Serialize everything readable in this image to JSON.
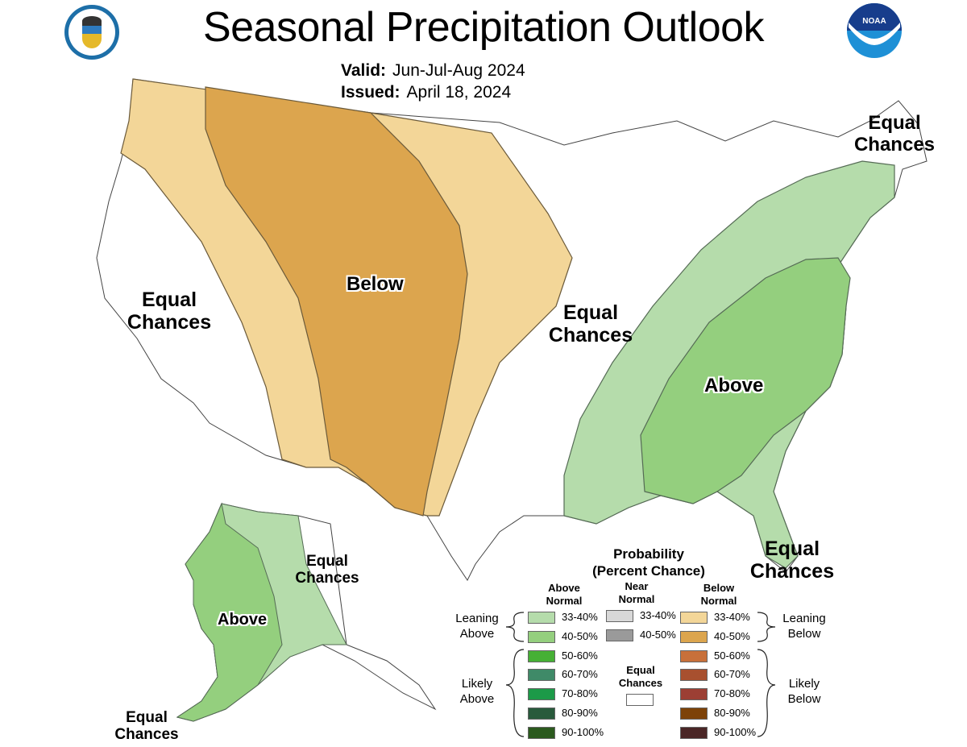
{
  "header": {
    "title": "Seasonal Precipitation Outlook",
    "valid_label": "Valid:",
    "valid_value": "Jun-Jul-Aug 2024",
    "issued_label": "Issued:",
    "issued_value": "April 18, 2024",
    "left_logo": "department-of-commerce-seal",
    "right_logo": "noaa-logo",
    "noaa_text": "NOAA"
  },
  "colors": {
    "below_33_40": "#f3d698",
    "below_40_50": "#dca54e",
    "above_33_40": "#b5dcab",
    "above_40_50": "#94cf7e",
    "equal_chances": "#ffffff",
    "boundary": "#555555"
  },
  "map_labels": {
    "below_center": "Below",
    "above_southeast": "Above",
    "above_alaska": "Above",
    "ec_west": [
      "Equal",
      "Chances"
    ],
    "ec_midwest": [
      "Equal",
      "Chances"
    ],
    "ec_northeast": [
      "Equal",
      "Chances"
    ],
    "ec_florida": [
      "Equal",
      "Chances"
    ],
    "ec_alaska_east": [
      "Equal",
      "Chances"
    ],
    "ec_aleutians": [
      "Equal",
      "Chances"
    ]
  },
  "legend": {
    "title_line1": "Probability",
    "title_line2": "(Percent Chance)",
    "above_header": [
      "Above",
      "Normal"
    ],
    "near_header": [
      "Near",
      "Normal"
    ],
    "below_header": [
      "Below",
      "Normal"
    ],
    "leaning_above": [
      "Leaning",
      "Above"
    ],
    "likely_above": [
      "Likely",
      "Above"
    ],
    "leaning_below": [
      "Leaning",
      "Below"
    ],
    "likely_below": [
      "Likely",
      "Below"
    ],
    "equal_chances": [
      "Equal",
      "Chances"
    ],
    "above": [
      {
        "label": "33-40%",
        "color": "#b5dcab"
      },
      {
        "label": "40-50%",
        "color": "#94cf7e"
      },
      {
        "label": "50-60%",
        "color": "#46b035"
      },
      {
        "label": "60-70%",
        "color": "#3f8a68"
      },
      {
        "label": "70-80%",
        "color": "#1c9a48"
      },
      {
        "label": "80-90%",
        "color": "#295a3c"
      },
      {
        "label": "90-100%",
        "color": "#2b5a1e"
      }
    ],
    "near": [
      {
        "label": "33-40%",
        "color": "#d8d8d8"
      },
      {
        "label": "40-50%",
        "color": "#9a9a9a"
      }
    ],
    "below": [
      {
        "label": "33-40%",
        "color": "#f3d698"
      },
      {
        "label": "40-50%",
        "color": "#dca54e"
      },
      {
        "label": "50-60%",
        "color": "#c8703a"
      },
      {
        "label": "60-70%",
        "color": "#a8502f"
      },
      {
        "label": "70-80%",
        "color": "#9c3f34"
      },
      {
        "label": "80-90%",
        "color": "#7d4208"
      },
      {
        "label": "90-100%",
        "color": "#4a2626"
      }
    ]
  }
}
